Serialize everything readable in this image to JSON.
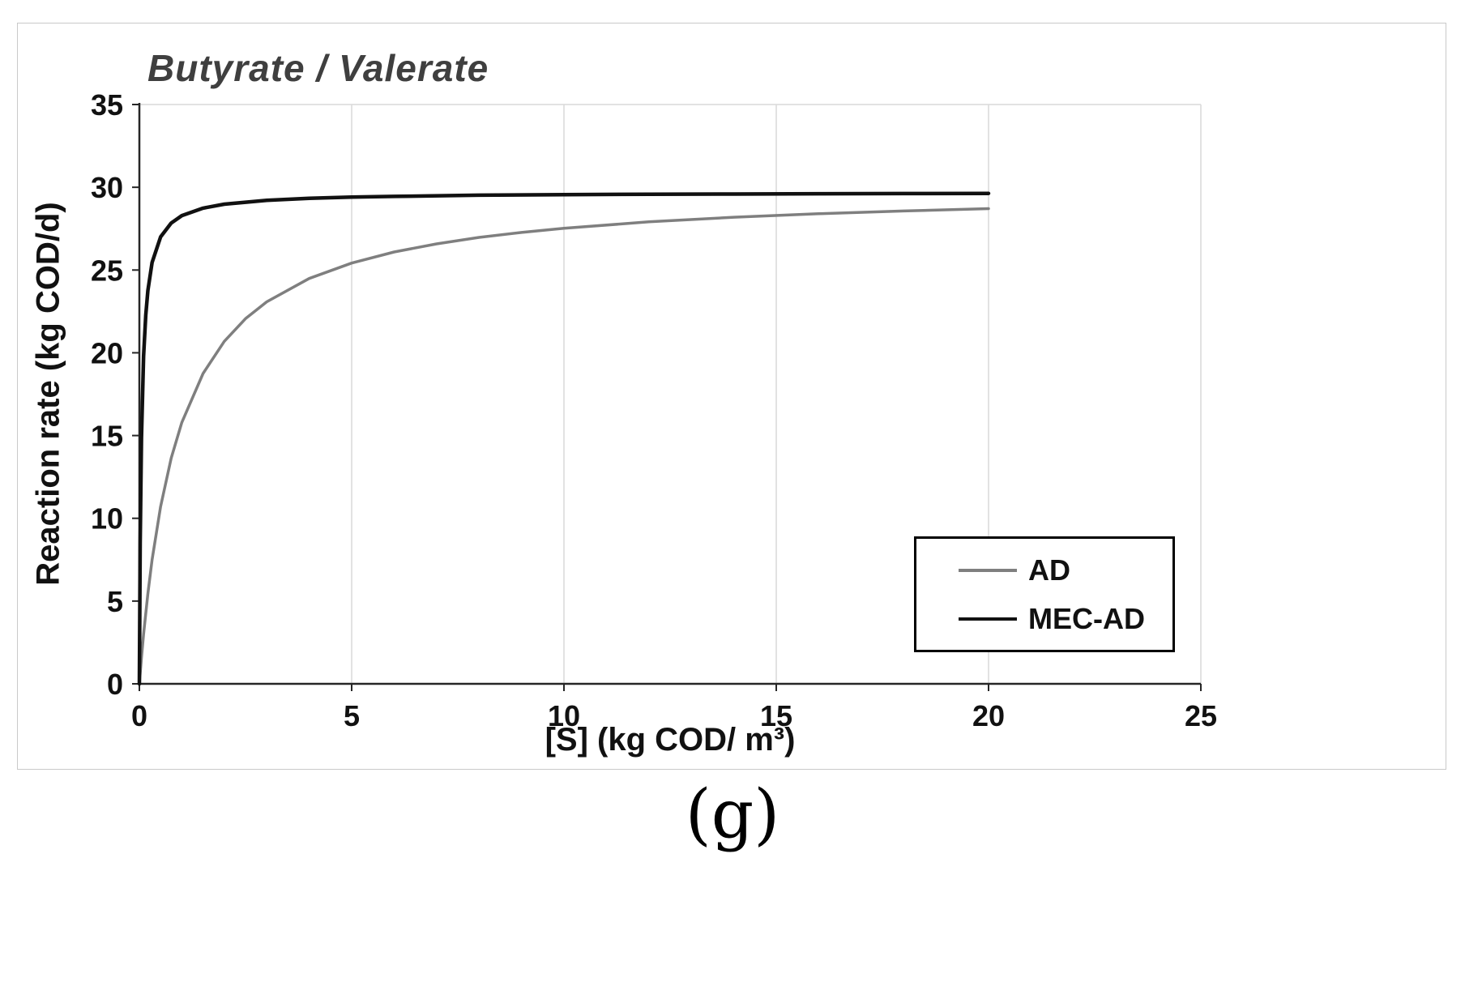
{
  "figure": {
    "caption": "(g)"
  },
  "chart_data": {
    "type": "line",
    "title": "Butyrate / Valerate",
    "xlabel": "[S] (kg COD/ m³)",
    "ylabel": "Reaction rate (kg COD/d)",
    "xlim": [
      0,
      25
    ],
    "ylim": [
      0,
      35
    ],
    "x_ticks": [
      0,
      5,
      10,
      15,
      20,
      25
    ],
    "y_ticks": [
      0,
      5,
      10,
      15,
      20,
      25,
      30,
      35
    ],
    "grid": "vertical gridlines only, light gray; plot box outlined",
    "legend_position": "inside plot, right side lower half, boxed",
    "colors": {
      "grid": "#d9d9d9",
      "axis": "#262626",
      "tick_text": "#111111",
      "title_text": "#3f3f3f"
    },
    "series": [
      {
        "name": "AD",
        "color": "#7f7f7f",
        "stroke_width": 3.5,
        "points": [
          [
            0,
            0
          ],
          [
            0.05,
            1.58
          ],
          [
            0.1,
            3.0
          ],
          [
            0.2,
            5.45
          ],
          [
            0.3,
            7.5
          ],
          [
            0.5,
            10.71
          ],
          [
            0.75,
            13.64
          ],
          [
            1,
            15.79
          ],
          [
            1.5,
            18.75
          ],
          [
            2,
            20.69
          ],
          [
            2.5,
            22.06
          ],
          [
            3,
            23.08
          ],
          [
            4,
            24.49
          ],
          [
            5,
            25.42
          ],
          [
            6,
            26.09
          ],
          [
            7,
            26.58
          ],
          [
            8,
            26.97
          ],
          [
            9,
            27.27
          ],
          [
            10,
            27.52
          ],
          [
            12,
            27.91
          ],
          [
            14,
            28.19
          ],
          [
            16,
            28.4
          ],
          [
            18,
            28.57
          ],
          [
            20,
            28.71
          ]
        ]
      },
      {
        "name": "MEC-AD",
        "color": "#111111",
        "stroke_width": 4.5,
        "points": [
          [
            0,
            0
          ],
          [
            0.02,
            8.49
          ],
          [
            0.05,
            14.85
          ],
          [
            0.1,
            19.8
          ],
          [
            0.15,
            22.28
          ],
          [
            0.2,
            23.76
          ],
          [
            0.3,
            25.46
          ],
          [
            0.5,
            27.0
          ],
          [
            0.75,
            27.84
          ],
          [
            1,
            28.29
          ],
          [
            1.5,
            28.74
          ],
          [
            2,
            28.98
          ],
          [
            3,
            29.21
          ],
          [
            4,
            29.33
          ],
          [
            5,
            29.41
          ],
          [
            6,
            29.45
          ],
          [
            8,
            29.52
          ],
          [
            10,
            29.55
          ],
          [
            12,
            29.58
          ],
          [
            14,
            29.59
          ],
          [
            16,
            29.61
          ],
          [
            18,
            29.62
          ],
          [
            20,
            29.63
          ]
        ]
      }
    ]
  }
}
